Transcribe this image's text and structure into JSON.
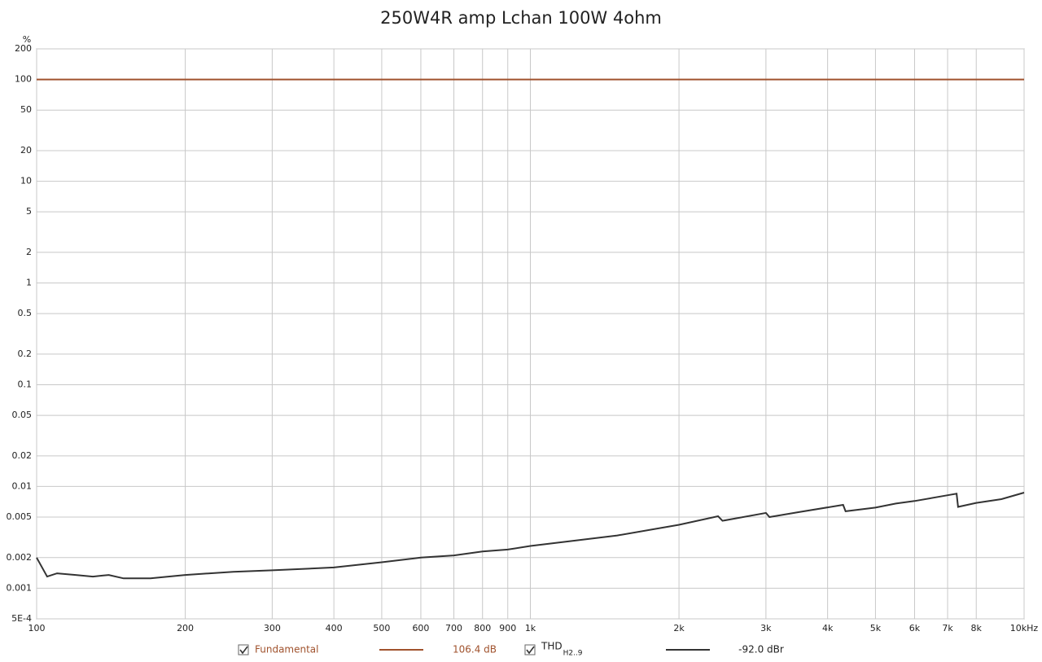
{
  "chart_data": {
    "type": "line",
    "title": "250W4R amp Lchan 100W 4ohm",
    "y_label": "%",
    "xscale": "log",
    "yscale": "log",
    "grid": true,
    "xlim": [
      100,
      10000
    ],
    "ylim": [
      0.0005,
      200
    ],
    "xticks": [
      100,
      200,
      300,
      400,
      500,
      600,
      700,
      800,
      900,
      {
        "value": 1000,
        "label": "1k"
      },
      {
        "value": 2000,
        "label": "2k"
      },
      {
        "value": 3000,
        "label": "3k"
      },
      {
        "value": 4000,
        "label": "4k"
      },
      {
        "value": 5000,
        "label": "5k"
      },
      {
        "value": 6000,
        "label": "6k"
      },
      {
        "value": 7000,
        "label": "7k"
      },
      {
        "value": 8000,
        "label": "8k"
      },
      {
        "value": 10000,
        "label": "10kHz"
      }
    ],
    "yticks": [
      200,
      100,
      50,
      20,
      10,
      5,
      2,
      1,
      0.5,
      0.2,
      0.1,
      0.05,
      0.02,
      0.01,
      0.005,
      0.002,
      0.001,
      {
        "value": 0.0005,
        "label": "5E-4"
      }
    ],
    "x": [
      100,
      105,
      110,
      120,
      130,
      140,
      150,
      170,
      200,
      250,
      300,
      400,
      500,
      600,
      700,
      800,
      900,
      1000,
      1500,
      2000,
      2400,
      2450,
      3000,
      3050,
      3500,
      4300,
      4350,
      5000,
      5500,
      6000,
      7000,
      7300,
      7350,
      8000,
      9000,
      10000
    ],
    "series": [
      {
        "name": "Fundamental",
        "color": "#a0522d",
        "legend_value": "106.4 dB",
        "values": [
          100,
          100,
          100,
          100,
          100,
          100,
          100,
          100,
          100,
          100,
          100,
          100,
          100,
          100,
          100,
          100,
          100,
          100,
          100,
          100,
          100,
          100,
          100,
          100,
          100,
          100,
          100,
          100,
          100,
          100,
          100,
          100,
          100,
          100,
          100,
          100
        ]
      },
      {
        "name": "THD",
        "name_subscript": "H2..9",
        "color": "#333333",
        "legend_value": "-92.0 dBr",
        "values": [
          0.002,
          0.0013,
          0.0014,
          0.00135,
          0.0013,
          0.00135,
          0.00125,
          0.00125,
          0.00135,
          0.00145,
          0.0015,
          0.0016,
          0.0018,
          0.002,
          0.0021,
          0.0023,
          0.0024,
          0.0026,
          0.0033,
          0.0042,
          0.0051,
          0.0046,
          0.0055,
          0.005,
          0.0056,
          0.0066,
          0.0057,
          0.0062,
          0.0068,
          0.0072,
          0.0082,
          0.0085,
          0.0063,
          0.0069,
          0.0075,
          0.0087
        ]
      }
    ]
  }
}
